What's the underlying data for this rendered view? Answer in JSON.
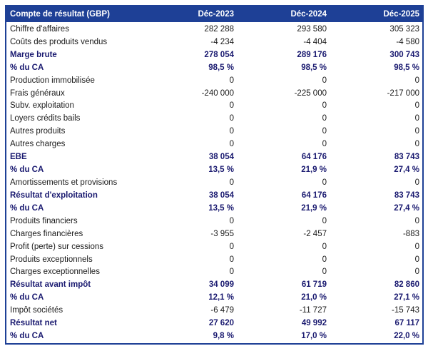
{
  "table": {
    "title": "Compte de résultat (GBP)",
    "header": {
      "label": "Compte de résultat (GBP)",
      "columns": [
        "Déc-2023",
        "Déc-2024",
        "Déc-2025"
      ]
    },
    "rows": [
      {
        "label": "Chiffre d'affaires",
        "values": [
          "282 288",
          "293 580",
          "305 323"
        ],
        "bold": false
      },
      {
        "label": "Coûts des produits vendus",
        "values": [
          "-4 234",
          "-4 404",
          "-4 580"
        ],
        "bold": false
      },
      {
        "label": "Marge brute",
        "values": [
          "278 054",
          "289 176",
          "300 743"
        ],
        "bold": true
      },
      {
        "label": "% du CA",
        "values": [
          "98,5 %",
          "98,5 %",
          "98,5 %"
        ],
        "bold": true
      },
      {
        "label": "Production immobilisée",
        "values": [
          "0",
          "0",
          "0"
        ],
        "bold": false
      },
      {
        "label": "Frais généraux",
        "values": [
          "-240 000",
          "-225 000",
          "-217 000"
        ],
        "bold": false
      },
      {
        "label": "Subv. exploitation",
        "values": [
          "0",
          "0",
          "0"
        ],
        "bold": false
      },
      {
        "label": "Loyers crédits bails",
        "values": [
          "0",
          "0",
          "0"
        ],
        "bold": false
      },
      {
        "label": "Autres produits",
        "values": [
          "0",
          "0",
          "0"
        ],
        "bold": false
      },
      {
        "label": "Autres charges",
        "values": [
          "0",
          "0",
          "0"
        ],
        "bold": false
      },
      {
        "label": "EBE",
        "values": [
          "38 054",
          "64 176",
          "83 743"
        ],
        "bold": true
      },
      {
        "label": "% du CA",
        "values": [
          "13,5 %",
          "21,9 %",
          "27,4 %"
        ],
        "bold": true
      },
      {
        "label": "Amortissements et provisions",
        "values": [
          "0",
          "0",
          "0"
        ],
        "bold": false
      },
      {
        "label": "Résultat d'exploitation",
        "values": [
          "38 054",
          "64 176",
          "83 743"
        ],
        "bold": true
      },
      {
        "label": "% du CA",
        "values": [
          "13,5 %",
          "21,9 %",
          "27,4 %"
        ],
        "bold": true
      },
      {
        "label": "Produits financiers",
        "values": [
          "0",
          "0",
          "0"
        ],
        "bold": false
      },
      {
        "label": "Charges financières",
        "values": [
          "-3 955",
          "-2 457",
          "-883"
        ],
        "bold": false
      },
      {
        "label": "Profit (perte) sur cessions",
        "values": [
          "0",
          "0",
          "0"
        ],
        "bold": false
      },
      {
        "label": "Produits exceptionnels",
        "values": [
          "0",
          "0",
          "0"
        ],
        "bold": false
      },
      {
        "label": "Charges exceptionnelles",
        "values": [
          "0",
          "0",
          "0"
        ],
        "bold": false
      },
      {
        "label": "Résultat avant impôt",
        "values": [
          "34 099",
          "61 719",
          "82 860"
        ],
        "bold": true
      },
      {
        "label": "% du CA",
        "values": [
          "12,1 %",
          "21,0 %",
          "27,1 %"
        ],
        "bold": true
      },
      {
        "label": "Impôt sociétés",
        "values": [
          "-6 479",
          "-11 727",
          "-15 743"
        ],
        "bold": false
      },
      {
        "label": "Résultat net",
        "values": [
          "27 620",
          "49 992",
          "67 117"
        ],
        "bold": true
      },
      {
        "label": "% du CA",
        "values": [
          "9,8 %",
          "17,0 %",
          "22,0 %"
        ],
        "bold": true
      }
    ],
    "colors": {
      "header_bg": "#1E4096",
      "header_text": "#FFFFFF",
      "border": "#1E4096",
      "bold_text": "#1A1A70",
      "text": "#1A1A1A"
    }
  }
}
